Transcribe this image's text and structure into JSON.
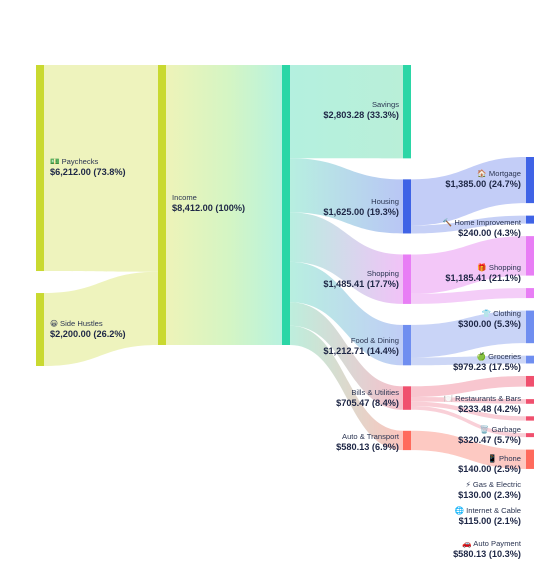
{
  "colors": {
    "income_green": "#c9d930",
    "teal": "#2bd6a6",
    "blue": "#3f63e6",
    "purple": "#e87ef5",
    "light_blue": "#6f8ef0",
    "red": "#f0506e",
    "salmon": "#ff6a5c"
  },
  "chart_data": {
    "type": "sankey",
    "sources": [
      {
        "id": "paychecks",
        "name": "💵 Paychecks",
        "value": 6212.0,
        "label": "$6,212.00 (73.8%)"
      },
      {
        "id": "side_hustles",
        "name": "😀 Side Hustles",
        "value": 2200.0,
        "label": "$2,200.00 (26.2%)"
      }
    ],
    "income": {
      "id": "income",
      "name": "Income",
      "value": 8412.0,
      "label": "$8,412.00 (100%)"
    },
    "categories": [
      {
        "id": "savings",
        "name": "Savings",
        "value": 2803.28,
        "label": "$2,803.28 (33.3%)"
      },
      {
        "id": "housing",
        "name": "Housing",
        "value": 1625.0,
        "label": "$1,625.00 (19.3%)"
      },
      {
        "id": "shopping",
        "name": "Shopping",
        "value": 1485.41,
        "label": "$1,485.41 (17.7%)"
      },
      {
        "id": "food",
        "name": "Food & Dining",
        "value": 1212.71,
        "label": "$1,212.71 (14.4%)"
      },
      {
        "id": "bills",
        "name": "Bills & Utilities",
        "value": 705.47,
        "label": "$705.47 (8.4%)"
      },
      {
        "id": "auto",
        "name": "Auto & Transport",
        "value": 580.13,
        "label": "$580.13 (6.9%)"
      }
    ],
    "subcategories": [
      {
        "id": "mortgage",
        "parent": "housing",
        "name": "🏠 Mortgage",
        "value": 1385.0,
        "label": "$1,385.00 (24.7%)"
      },
      {
        "id": "home_improvement",
        "parent": "housing",
        "name": "🔨 Home Improvement",
        "value": 240.0,
        "label": "$240.00 (4.3%)"
      },
      {
        "id": "shopping_sub",
        "parent": "shopping",
        "name": "🎁 Shopping",
        "value": 1185.41,
        "label": "$1,185.41 (21.1%)"
      },
      {
        "id": "clothing",
        "parent": "shopping",
        "name": "👕 Clothing",
        "value": 300.0,
        "label": "$300.00 (5.3%)"
      },
      {
        "id": "groceries",
        "parent": "food",
        "name": "🍏 Groceries",
        "value": 979.23,
        "label": "$979.23 (17.5%)"
      },
      {
        "id": "restaurants",
        "parent": "food",
        "name": "🍽️ Restaurants & Bars",
        "value": 233.48,
        "label": "$233.48 (4.2%)"
      },
      {
        "id": "garbage",
        "parent": "bills",
        "name": "🗑️ Garbage",
        "value": 320.47,
        "label": "$320.47 (5.7%)"
      },
      {
        "id": "phone",
        "parent": "bills",
        "name": "📱 Phone",
        "value": 140.0,
        "label": "$140.00 (2.5%)"
      },
      {
        "id": "gas_electric",
        "parent": "bills",
        "name": "⚡ Gas & Electric",
        "value": 130.0,
        "label": "$130.00 (2.3%)"
      },
      {
        "id": "internet",
        "parent": "bills",
        "name": "🌐 Internet & Cable",
        "value": 115.0,
        "label": "$115.00 (2.1%)"
      },
      {
        "id": "auto_payment",
        "parent": "auto",
        "name": "🚗 Auto Payment",
        "value": 580.13,
        "label": "$580.13 (10.3%)"
      }
    ]
  }
}
